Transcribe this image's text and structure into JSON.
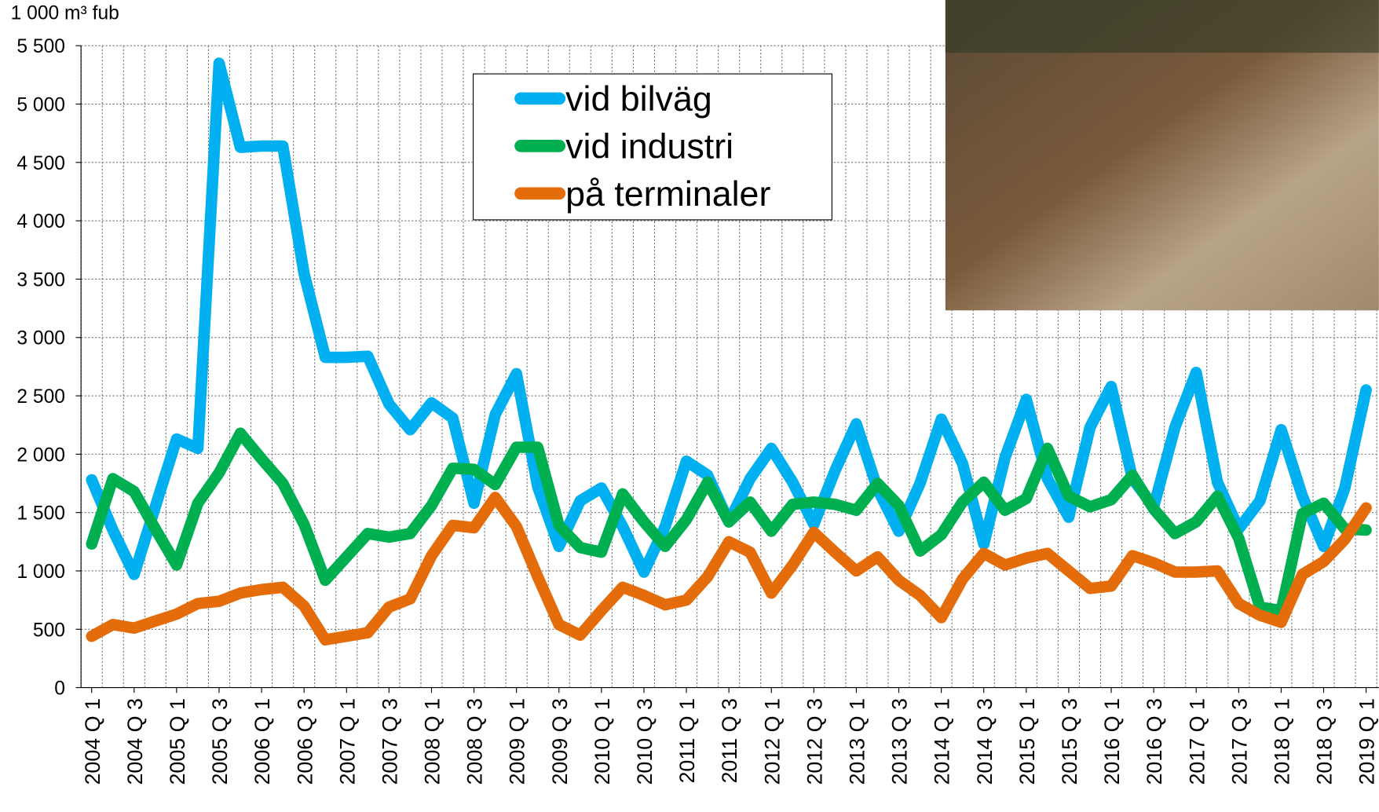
{
  "chart_data": {
    "type": "line",
    "y_label": "1 000 m³ fub",
    "categories": [
      "2004 Q 1",
      null,
      "2004 Q 3",
      null,
      "2005 Q 1",
      null,
      "2005 Q 3",
      null,
      "2006 Q 1",
      null,
      "2006 Q 3",
      null,
      "2007 Q 1",
      null,
      "2007 Q 3",
      null,
      "2008 Q 1",
      null,
      "2008 Q 3",
      null,
      "2009 Q 1",
      null,
      "2009 Q 3",
      null,
      "2010 Q 1",
      null,
      "2010 Q 3",
      null,
      "2011 Q 1",
      null,
      "2011 Q 3",
      null,
      "2012 Q 1",
      null,
      "2012 Q 3",
      null,
      "2013 Q 1",
      null,
      "2013 Q 3",
      null,
      "2014 Q 1",
      null,
      "2014 Q 3",
      null,
      "2015 Q 1",
      null,
      "2015 Q 3",
      null,
      "2016 Q 1",
      null,
      "2016 Q 3",
      null,
      "2017 Q 1",
      null,
      "2017 Q 3",
      null,
      "2018 Q 1",
      null,
      "2018 Q 3",
      null,
      "2019 Q 1"
    ],
    "series": [
      {
        "name": "vid bilväg",
        "color": "#00b0f0",
        "values": [
          1780,
          1350,
          970,
          1550,
          2130,
          2050,
          5350,
          4630,
          4640,
          4640,
          3550,
          2830,
          2830,
          2840,
          2430,
          2210,
          2440,
          2310,
          1580,
          2340,
          2690,
          1720,
          1210,
          1600,
          1710,
          1380,
          990,
          1380,
          1940,
          1820,
          1420,
          1790,
          2050,
          1760,
          1400,
          1860,
          2260,
          1700,
          1340,
          1750,
          2300,
          1920,
          1230,
          1970,
          2470,
          1790,
          1460,
          2230,
          2580,
          1790,
          1550,
          2230,
          2700,
          1760,
          1360,
          1600,
          2210,
          1640,
          1210,
          1710,
          2550
        ]
      },
      {
        "name": "vid industri",
        "color": "#00b050",
        "values": [
          1230,
          1790,
          1680,
          1360,
          1050,
          1580,
          1840,
          2180,
          1960,
          1750,
          1400,
          920,
          1120,
          1320,
          1290,
          1320,
          1560,
          1880,
          1870,
          1740,
          2060,
          2060,
          1390,
          1200,
          1160,
          1660,
          1420,
          1210,
          1440,
          1760,
          1420,
          1590,
          1340,
          1570,
          1590,
          1570,
          1520,
          1750,
          1560,
          1170,
          1310,
          1590,
          1760,
          1520,
          1620,
          2050,
          1640,
          1550,
          1610,
          1820,
          1530,
          1320,
          1420,
          1640,
          1280,
          690,
          660,
          1490,
          1580,
          1360,
          1350
        ]
      },
      {
        "name": "på terminaler",
        "color": "#e46c0a",
        "values": [
          440,
          540,
          510,
          570,
          630,
          720,
          740,
          810,
          840,
          860,
          700,
          410,
          440,
          470,
          690,
          760,
          1130,
          1390,
          1370,
          1630,
          1380,
          950,
          540,
          450,
          660,
          860,
          790,
          710,
          750,
          950,
          1250,
          1160,
          810,
          1050,
          1330,
          1160,
          1000,
          1120,
          920,
          790,
          600,
          930,
          1150,
          1050,
          1110,
          1150,
          1000,
          850,
          870,
          1130,
          1070,
          990,
          990,
          1000,
          720,
          620,
          560,
          970,
          1080,
          1270,
          1540
        ]
      }
    ],
    "ylim": [
      0,
      5500
    ],
    "yticks": [
      0,
      500,
      {
        "value": 1000,
        "label": "1 000"
      },
      {
        "value": 1500,
        "label": "1 500"
      },
      {
        "value": 2000,
        "label": "2 000"
      },
      {
        "value": 2500,
        "label": "2 500"
      },
      {
        "value": 3000,
        "label": "3 000"
      },
      {
        "value": 3500,
        "label": "3 500"
      },
      {
        "value": 4000,
        "label": "4 000"
      },
      {
        "value": 4500,
        "label": "4 500"
      },
      {
        "value": 5000,
        "label": "5 000"
      },
      {
        "value": 5500,
        "label": "5 500"
      }
    ],
    "grid": true
  }
}
